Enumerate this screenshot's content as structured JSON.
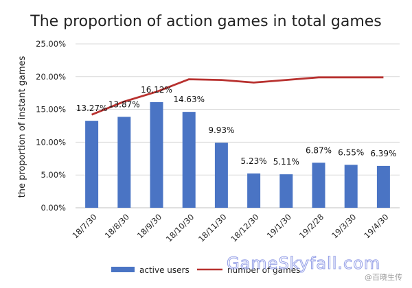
{
  "chart_data": {
    "type": "bar",
    "title": "The proportion of action games in total games",
    "ylabel": "the proportion of instant games",
    "xlabel": "",
    "categories": [
      "18/7/30",
      "18/8/30",
      "18/9/30",
      "18/10/30",
      "18/11/30",
      "18/12/30",
      "19/1/30",
      "19/2/28",
      "19/3/30",
      "19/4/30"
    ],
    "y_ticks": [
      "0.00%",
      "5.00%",
      "10.00%",
      "15.00%",
      "20.00%",
      "25.00%"
    ],
    "ylim": [
      0,
      25
    ],
    "series": [
      {
        "name": "active users",
        "type": "bar",
        "color": "#4a74c4",
        "values": [
          13.27,
          13.87,
          16.12,
          14.63,
          9.93,
          5.23,
          5.11,
          6.87,
          6.55,
          6.39
        ],
        "labels": [
          "13.27%",
          "13.87%",
          "16.12%",
          "14.63%",
          "9.93%",
          "5.23%",
          "5.11%",
          "6.87%",
          "6.55%",
          "6.39%"
        ]
      },
      {
        "name": "number of games",
        "type": "line",
        "color": "#b8312f",
        "values": [
          14.2,
          16.2,
          17.7,
          19.6,
          19.5,
          19.1,
          19.5,
          19.9,
          19.9,
          19.9
        ]
      }
    ],
    "grid": true,
    "legend_position": "bottom"
  },
  "watermark": {
    "text": "GameSkyfall.com",
    "secondary": "@百晓生传",
    "color": "#9aa4e8"
  }
}
